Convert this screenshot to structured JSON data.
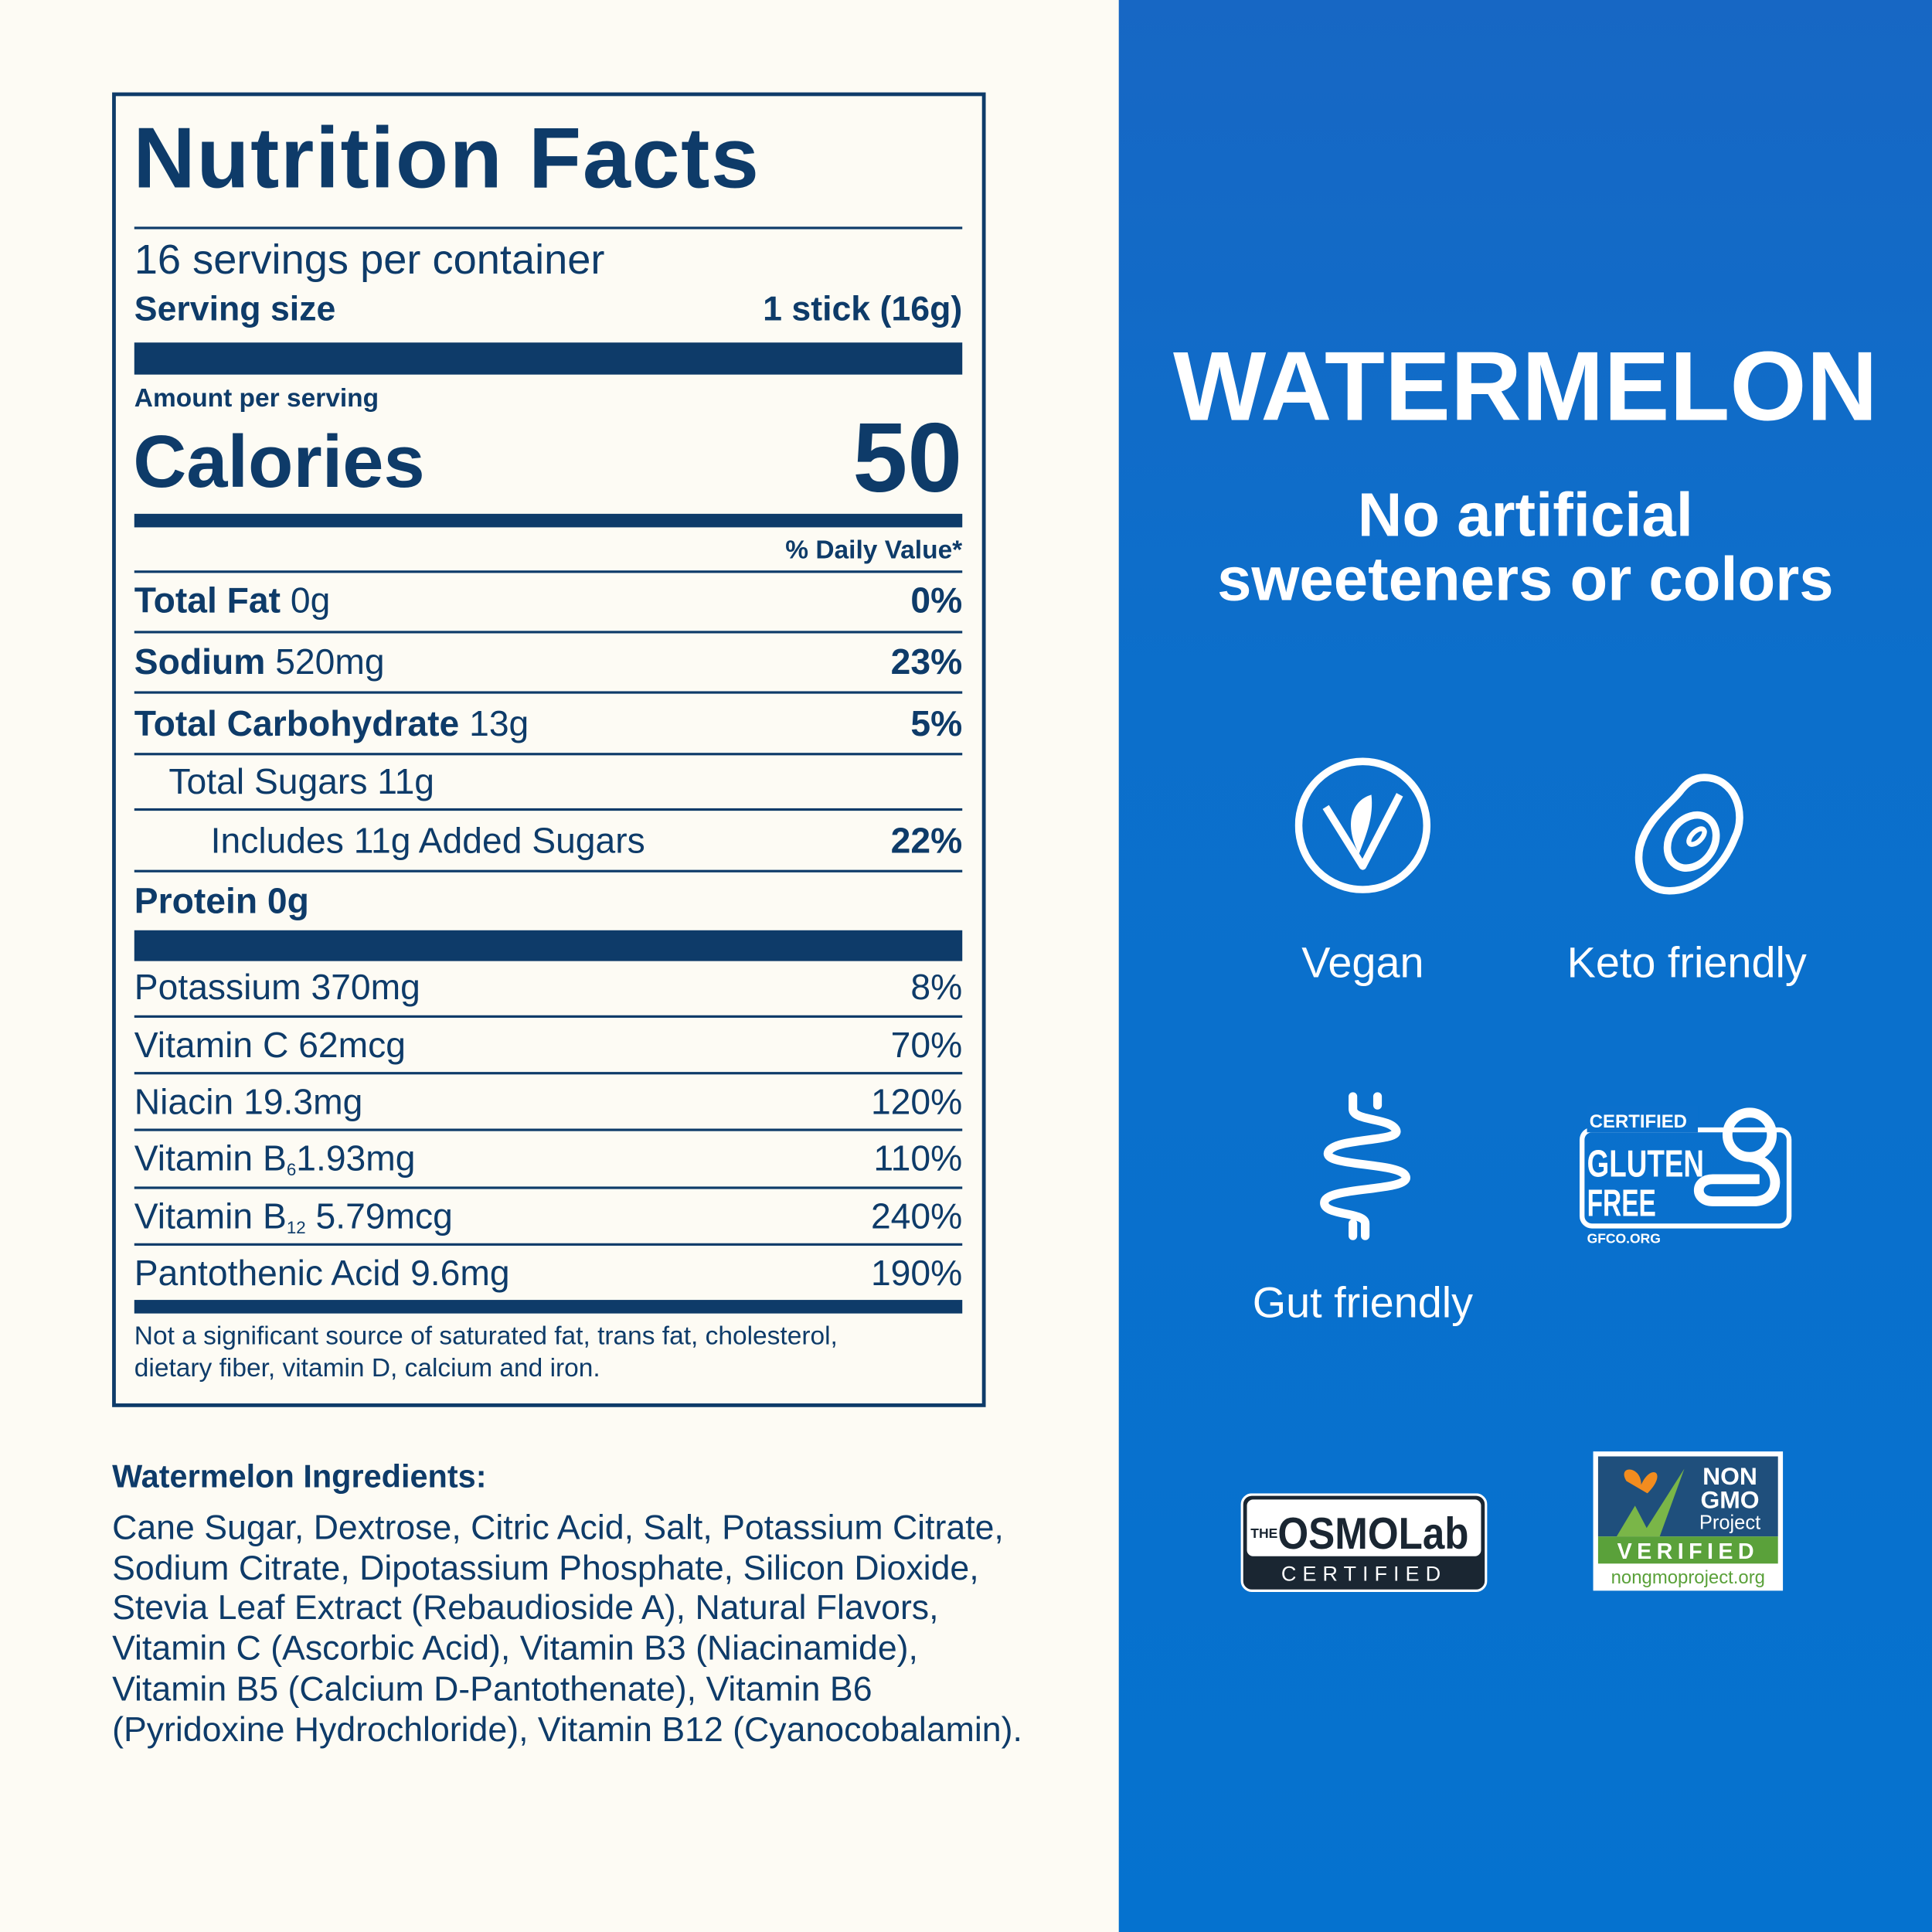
{
  "nutrition_facts": {
    "title": "Nutrition Facts",
    "servings_per_container": "16 servings per container",
    "serving_size_label": "Serving size",
    "serving_size": "1 stick (16g)",
    "amount_per_serving": "Amount per serving",
    "calories_label": "Calories",
    "calories": "50",
    "daily_value_header": "% Daily Value*",
    "nutrients": [
      {
        "name": "Total Fat",
        "amount": "0g",
        "dv": "0%"
      },
      {
        "name": "Sodium",
        "amount": "520mg",
        "dv": "23%"
      },
      {
        "name": "Total Carbohydrate",
        "amount": "13g",
        "dv": "5%"
      },
      {
        "name": "Total Sugars 11g"
      },
      {
        "name": "Includes 11g Added Sugars",
        "dv": "22%"
      },
      {
        "name": "Protein 0g"
      }
    ],
    "vitamins": [
      {
        "name": "Potassium 370mg",
        "dv": "8%"
      },
      {
        "name": "Vitamin C 62mcg",
        "dv": "70%"
      },
      {
        "name": "Niacin 19.3mg",
        "dv": "120%"
      },
      {
        "name": "Vitamin B",
        "sub": "6",
        "amount": "1.93mg",
        "dv": "110%"
      },
      {
        "name": "Vitamin B",
        "sub": "12",
        "amount": " 5.79mcg",
        "dv": "240%"
      },
      {
        "name": "Pantothenic Acid 9.6mg",
        "dv": "190%"
      }
    ],
    "footnote": [
      "Not a significant source of saturated fat, trans fat, cholesterol,",
      "dietary fiber, vitamin D, calcium and iron."
    ]
  },
  "ingredients": {
    "title": "Watermelon Ingredients:",
    "lines": [
      "Cane Sugar, Dextrose, Citric Acid, Salt, Potassium Citrate,",
      "Sodium Citrate, Dipotassium Phosphate, Silicon Dioxide,",
      "Stevia Leaf Extract (Rebaudioside A), Natural Flavors,",
      "Vitamin C (Ascorbic Acid), Vitamin B3 (Niacinamide),",
      "Vitamin B5 (Calcium D-Pantothenate), Vitamin B6",
      "(Pyridoxine Hydrochloride), Vitamin B12 (Cyanocobalamin)."
    ]
  },
  "flavor": "WATERMELON",
  "tagline": [
    "No artificial",
    "sweeteners or colors"
  ],
  "badges": [
    "Vegan",
    "Keto friendly",
    "Gut friendly"
  ],
  "gluten_free_logo": {
    "top": "CERTIFIED",
    "line1": "GLUTEN",
    "line2": "FREE",
    "url": "GFCO.ORG"
  },
  "osmo_logo": {
    "prefix": "THE",
    "name": "OSMOLab",
    "caption": "CERTIFIED"
  },
  "non_gmo_logo": {
    "line1": "NON",
    "line2": "GMO",
    "line3": "Project",
    "verified": "VERIFIED",
    "url": "nongmoproject.org"
  }
}
